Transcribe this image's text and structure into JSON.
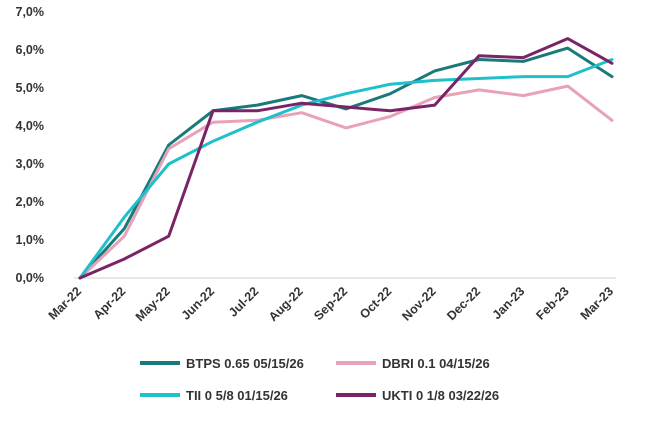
{
  "chart_data": {
    "type": "line",
    "title": "",
    "xlabel": "",
    "ylabel": "",
    "ylim": [
      0,
      7
    ],
    "y_ticks": [
      "0,0%",
      "1,0%",
      "2,0%",
      "3,0%",
      "4,0%",
      "5,0%",
      "6,0%",
      "7,0%"
    ],
    "categories": [
      "Mar-22",
      "Apr-22",
      "May-22",
      "Jun-22",
      "Jul-22",
      "Aug-22",
      "Sep-22",
      "Oct-22",
      "Nov-22",
      "Dec-22",
      "Jan-23",
      "Feb-23",
      "Mar-23"
    ],
    "grid": false,
    "legend_position": "bottom",
    "series": [
      {
        "name": "BTPS 0.65 05/15/26",
        "color": "#1a7a7a",
        "values": [
          0.0,
          1.3,
          3.5,
          4.4,
          4.55,
          4.8,
          4.45,
          4.85,
          5.45,
          5.75,
          5.7,
          6.05,
          5.3
        ]
      },
      {
        "name": "DBRI 0.1 04/15/26",
        "color": "#e8a2b7",
        "values": [
          0.0,
          1.1,
          3.4,
          4.1,
          4.15,
          4.35,
          3.95,
          4.25,
          4.75,
          4.95,
          4.8,
          5.05,
          4.15
        ]
      },
      {
        "name": "TII 0 5/8 01/15/26",
        "color": "#1ec0cc",
        "values": [
          0.0,
          1.6,
          3.0,
          3.6,
          4.1,
          4.55,
          4.85,
          5.1,
          5.2,
          5.25,
          5.3,
          5.3,
          5.75
        ]
      },
      {
        "name": "UKTI 0 1/8 03/22/26",
        "color": "#7a2468",
        "values": [
          0.0,
          0.5,
          1.1,
          4.4,
          4.4,
          4.6,
          4.5,
          4.4,
          4.55,
          5.85,
          5.8,
          6.3,
          5.65
        ]
      }
    ]
  }
}
